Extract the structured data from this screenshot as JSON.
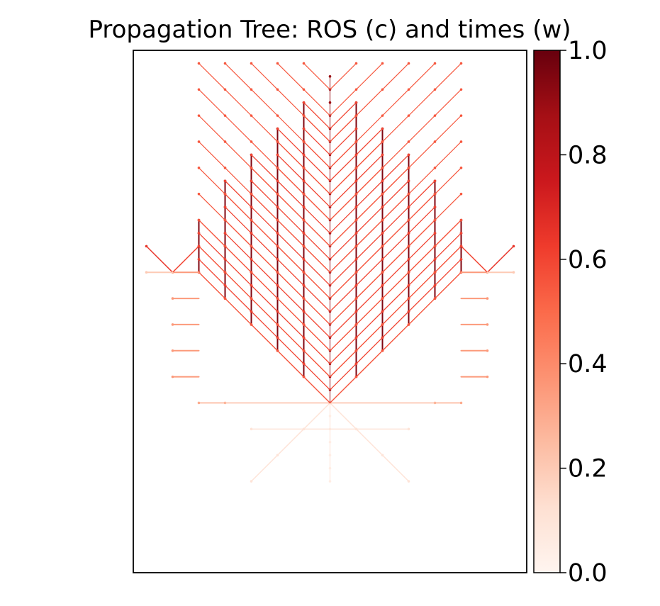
{
  "chart_data": {
    "type": "vector-field",
    "title": "Propagation Tree: ROS (c) and times (w)",
    "xlabel": "",
    "ylabel": "",
    "x_ticks_visible": false,
    "y_ticks_visible": false,
    "grid": false,
    "colormap": "Reds",
    "colormap_stops": [
      "#fff5f0",
      "#fee0d2",
      "#fcbba1",
      "#fc9272",
      "#fb6a4a",
      "#ef3b2c",
      "#cb181d",
      "#a50f15",
      "#67000d"
    ],
    "colorbar": {
      "range": [
        0.0,
        1.0
      ],
      "ticks": [
        0.0,
        0.2,
        0.4,
        0.6,
        0.8,
        1.0
      ],
      "tick_labels": [
        "0.0",
        "0.2",
        "0.4",
        "0.6",
        "0.8",
        "1.0"
      ]
    },
    "xlim": [
      -15,
      15
    ],
    "ylim": [
      -13,
      27
    ],
    "origin": [
      0,
      0
    ],
    "branch_directions": [
      "up",
      "up-left",
      "up-right",
      "left",
      "right",
      "down",
      "down-left",
      "down-right"
    ],
    "vertical_stems_x": [
      -10,
      -8,
      -6,
      -4,
      -2,
      0,
      2,
      4,
      6,
      8,
      10
    ],
    "vertical_stem_top_y": [
      14,
      17,
      19,
      21,
      23,
      25,
      23,
      21,
      19,
      17,
      14
    ]
  }
}
